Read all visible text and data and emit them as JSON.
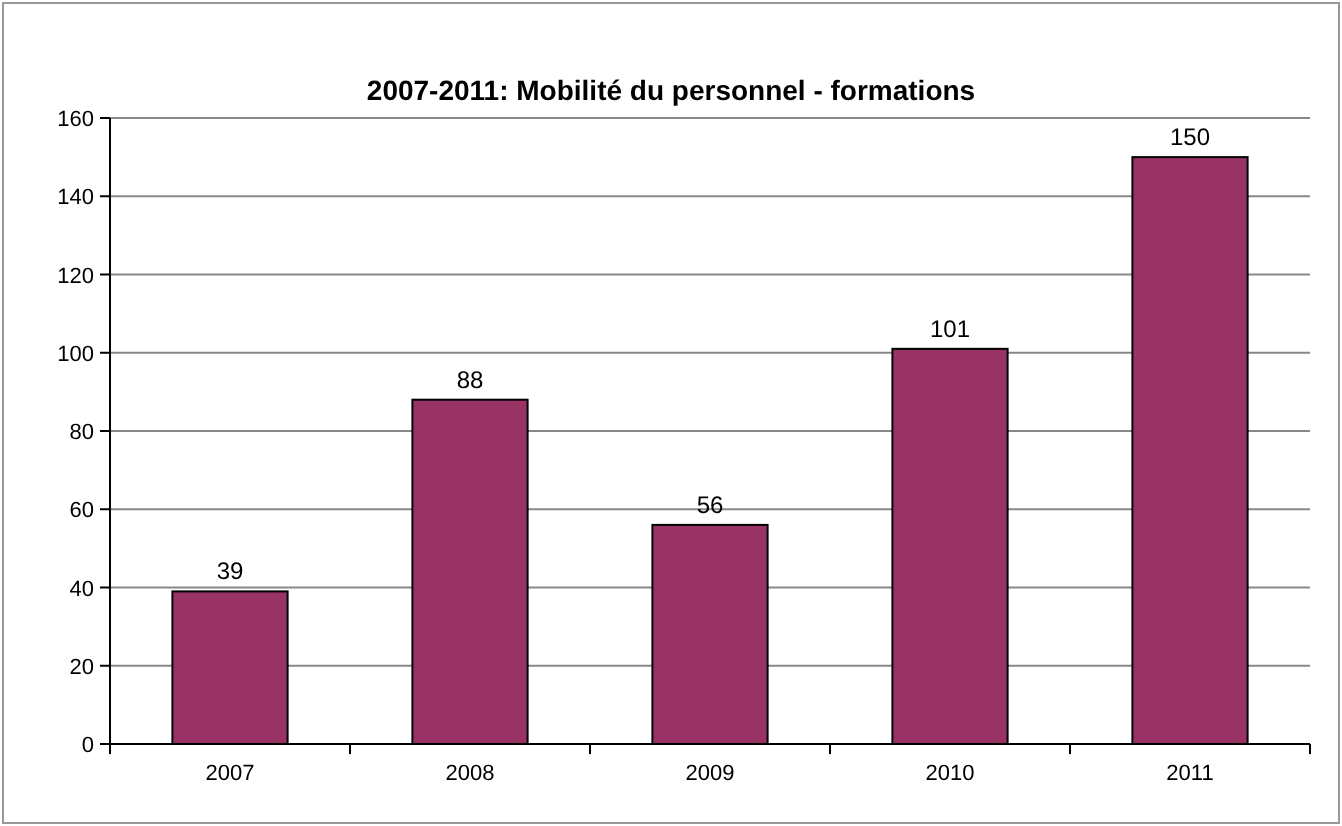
{
  "chart_data": {
    "type": "bar",
    "title": "2007-2011: Mobilité du personnel - formations",
    "categories": [
      "2007",
      "2008",
      "2009",
      "2010",
      "2011"
    ],
    "values": [
      39,
      88,
      56,
      101,
      150
    ],
    "color": "#993366",
    "ylim": [
      0,
      160
    ],
    "yticks": [
      0,
      20,
      40,
      60,
      80,
      100,
      120,
      140,
      160
    ],
    "grid": "y",
    "data_labels": true
  }
}
